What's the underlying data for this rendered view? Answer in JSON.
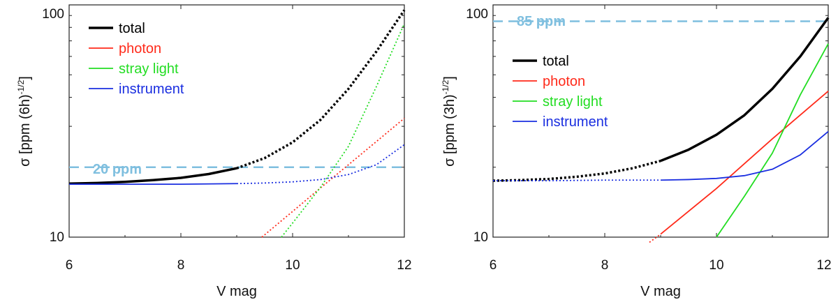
{
  "chart_data": [
    {
      "type": "line",
      "panel": "left",
      "xlabel": "V mag",
      "ylabel_main": "σ [ppm (6h)",
      "ylabel_exp": "-1/2",
      "ylabel_close": "]",
      "xlim": [
        6,
        12
      ],
      "ylim": [
        10,
        100
      ],
      "yscale": "log",
      "x_ticks": [
        6,
        8,
        10,
        12
      ],
      "x_tick_labels": [
        "6",
        "8",
        "10",
        "12"
      ],
      "y_tick_labels": [
        {
          "value": 10,
          "label": "10"
        },
        {
          "value": 100,
          "label": "100"
        }
      ],
      "threshold": {
        "value": 20,
        "label": "20 ppm",
        "color": "#7fbfdf"
      },
      "legend_position": "top-left",
      "series": [
        {
          "name": "total",
          "color": "#000000",
          "x": [
            6,
            6.5,
            7,
            7.5,
            8,
            8.5,
            9,
            9.5,
            10,
            10.5,
            11,
            11.5,
            12
          ],
          "y": [
            17.0,
            17.1,
            17.3,
            17.6,
            18.0,
            18.7,
            19.8,
            21.9,
            25.6,
            32.0,
            43.5,
            63.0,
            95.0
          ],
          "solid_until": 9
        },
        {
          "name": "photon",
          "color": "#ff2a1a",
          "x": [
            9.45,
            10,
            10.5,
            11,
            11.5,
            12
          ],
          "y": [
            10,
            12.9,
            16.3,
            20.5,
            25.8,
            32.5
          ],
          "solid_until": 0
        },
        {
          "name": "stray light",
          "color": "#22dd22",
          "x": [
            9.8,
            10,
            10.5,
            11,
            11.5,
            12
          ],
          "y": [
            10,
            11.5,
            16.4,
            24.6,
            44.5,
            83.0
          ],
          "solid_until": 0
        },
        {
          "name": "instrument",
          "color": "#1a2ee0",
          "x": [
            6,
            7,
            8,
            9,
            9.5,
            10,
            10.5,
            11,
            11.5,
            12
          ],
          "y": [
            16.9,
            16.9,
            16.9,
            17.0,
            17.1,
            17.3,
            17.7,
            18.6,
            20.5,
            25.0
          ],
          "solid_until": 9
        }
      ]
    },
    {
      "type": "line",
      "panel": "right",
      "xlabel": "V mag",
      "ylabel_main": "σ [ppm (3h)",
      "ylabel_exp": "-1/2",
      "ylabel_close": "]",
      "xlim": [
        6,
        12
      ],
      "ylim": [
        10,
        100
      ],
      "yscale": "log",
      "x_ticks": [
        6,
        8,
        10,
        12
      ],
      "x_tick_labels": [
        "6",
        "8",
        "10",
        "12"
      ],
      "y_tick_labels": [
        {
          "value": 10,
          "label": "10"
        },
        {
          "value": 100,
          "label": "100"
        }
      ],
      "threshold": {
        "value": 85,
        "label": "85 ppm",
        "color": "#7fbfdf"
      },
      "legend_position": "upper-left",
      "series": [
        {
          "name": "total",
          "color": "#000000",
          "x": [
            6,
            6.5,
            7,
            7.5,
            8,
            8.5,
            9,
            9.5,
            10,
            10.5,
            11,
            11.5,
            12
          ],
          "y": [
            17.5,
            17.6,
            17.8,
            18.2,
            18.8,
            19.8,
            21.3,
            23.8,
            27.6,
            33.5,
            43.5,
            60.0,
            88.0
          ],
          "solid_until": 9
        },
        {
          "name": "photon",
          "color": "#ff2a1a",
          "x": [
            8.8,
            9,
            10,
            11,
            12
          ],
          "y": [
            9.5,
            10.3,
            16.2,
            26.5,
            42.5
          ],
          "solid_until": 9
        },
        {
          "name": "stray light",
          "color": "#22dd22",
          "x": [
            10,
            10.5,
            11,
            11.5,
            12
          ],
          "y": [
            10,
            15.0,
            23.0,
            41.0,
            68.0
          ],
          "solid_until": 10
        },
        {
          "name": "instrument",
          "color": "#1a2ee0",
          "x": [
            6,
            7,
            8,
            9,
            9.5,
            10,
            10.5,
            11,
            11.5,
            12
          ],
          "y": [
            17.5,
            17.5,
            17.6,
            17.6,
            17.7,
            17.9,
            18.4,
            19.6,
            22.6,
            28.5
          ],
          "solid_until": 9
        }
      ]
    }
  ]
}
